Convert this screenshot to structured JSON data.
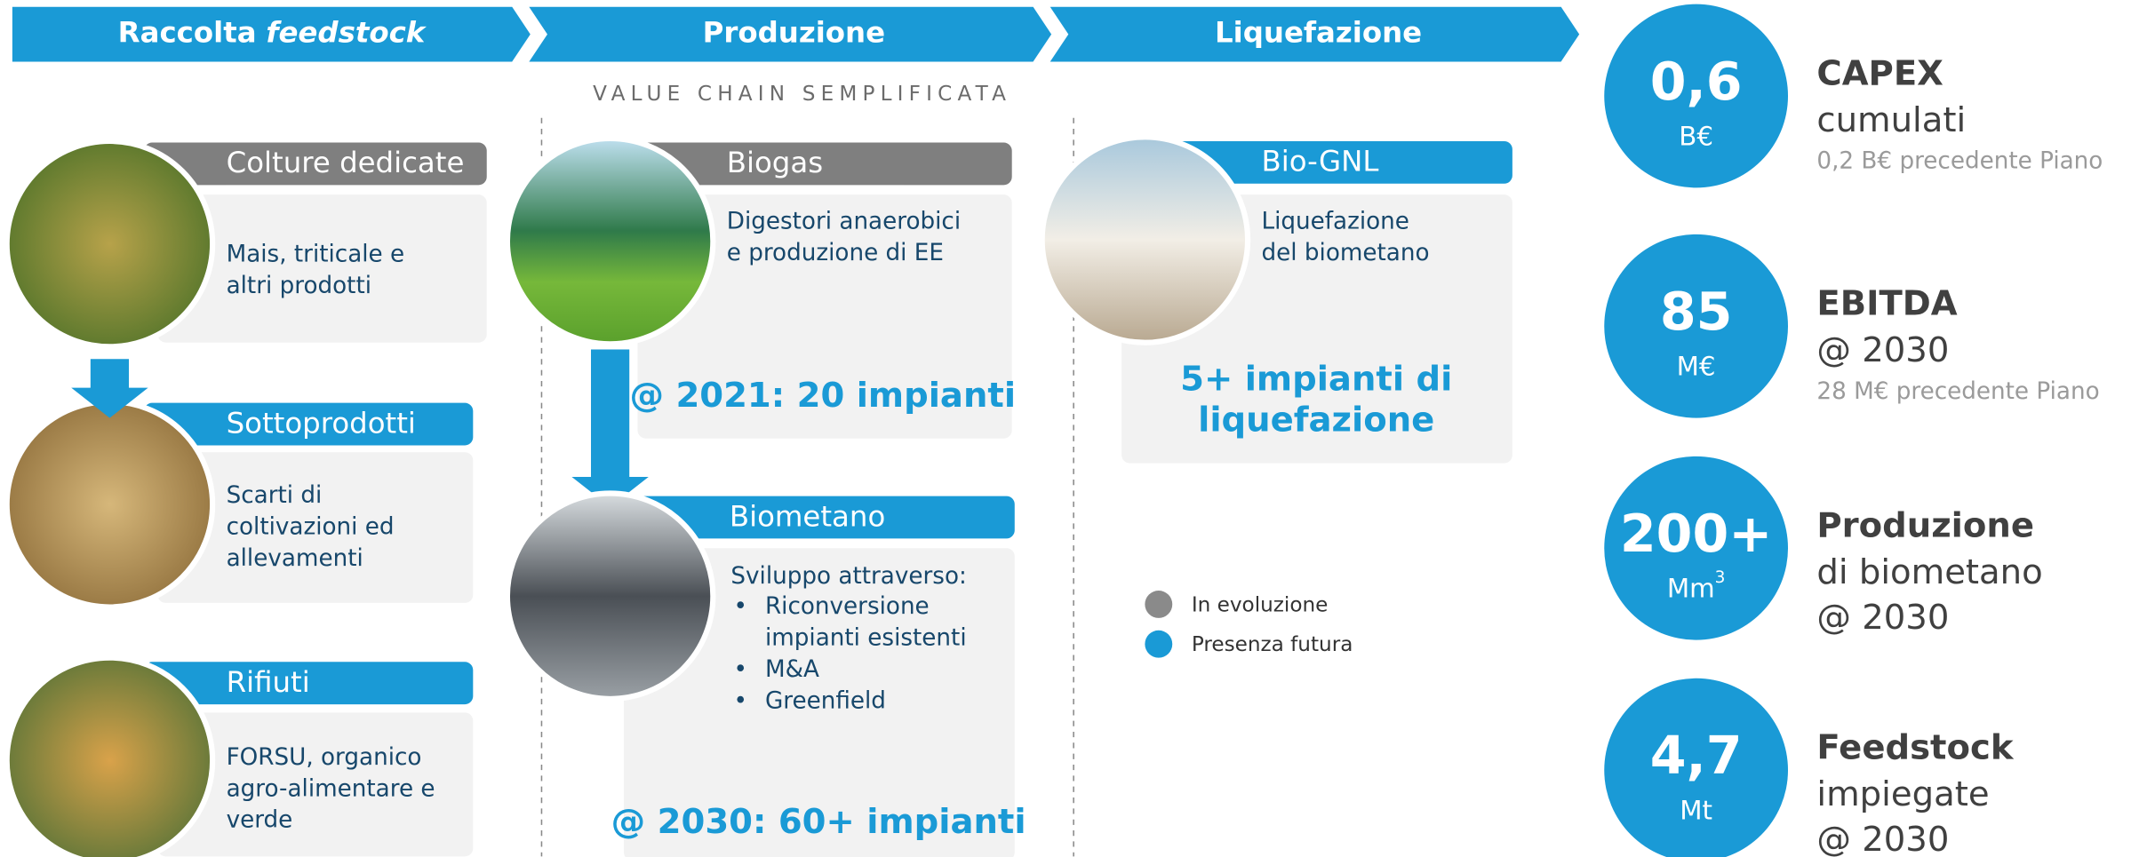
{
  "header": {
    "steps": [
      {
        "text": "Raccolta",
        "em": "feedstock"
      },
      {
        "text": "Produzione"
      },
      {
        "text": "Liquefazione"
      }
    ]
  },
  "subtitle": "VALUE CHAIN SEMPLIFICATA",
  "feedstock": [
    {
      "title": "Colture dedicate",
      "lines": [
        "Mais, triticale e",
        "altri prodotti"
      ]
    },
    {
      "title": "Sottoprodotti",
      "lines": [
        "Scarti di",
        "coltivazioni ed",
        "allevamenti"
      ]
    },
    {
      "title": "Rifiuti",
      "lines": [
        "FORSU, organico",
        "agro-alimentare e",
        "verde"
      ]
    }
  ],
  "production": {
    "biogas": {
      "title": "Biogas",
      "lines": [
        "Digestori anaerobici",
        "e produzione di EE"
      ],
      "highlight": "@ 2021: 20 impianti"
    },
    "biometano": {
      "title": "Biometano",
      "intro": "Sviluppo attraverso:",
      "bullets": [
        [
          "Riconversione",
          "impianti esistenti"
        ],
        [
          "M&A"
        ],
        [
          "Greenfield"
        ]
      ],
      "highlight": "@ 2030: 60+ impianti"
    }
  },
  "liquefaction": {
    "title": "Bio-GNL",
    "lines": [
      "Liquefazione",
      "del biometano"
    ],
    "highlight": [
      "5+ impianti di",
      "liquefazione"
    ]
  },
  "legend": [
    {
      "label": "In evoluzione"
    },
    {
      "label": "Presenza futura"
    }
  ],
  "kpis": [
    {
      "value": "0,6",
      "unit": "B€",
      "title": "CAPEX",
      "lines": [
        "cumulati"
      ],
      "note": "0,2 B€ precedente Piano"
    },
    {
      "value": "85",
      "unit": "M€",
      "title": "EBITDA",
      "lines": [
        "@ 2030"
      ],
      "note": "28 M€ precedente Piano"
    },
    {
      "value": "200+",
      "unit": "Mm",
      "unit_sup": "3",
      "title": "Produzione",
      "lines": [
        "di biometano",
        "@ 2030"
      ]
    },
    {
      "value": "4,7",
      "unit": "Mt",
      "title": "Feedstock",
      "lines": [
        "impiegate",
        "@ 2030"
      ]
    }
  ]
}
